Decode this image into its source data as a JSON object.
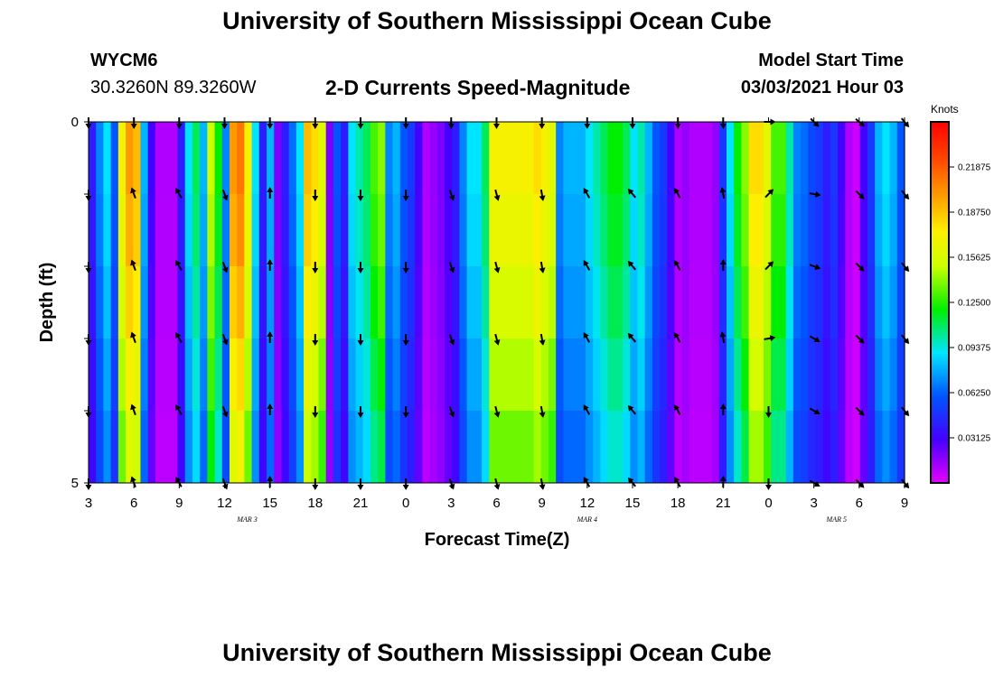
{
  "header": {
    "title": "University of Southern Mississippi Ocean Cube",
    "station_id": "WYCM6",
    "coordinates": "30.3260N 89.3260W",
    "subtitle": "2-D Currents Speed-Magnitude",
    "model_start_label": "Model Start Time",
    "model_start_value": "03/03/2021 Hour 03",
    "footer_title": "University of Southern Mississippi Ocean Cube"
  },
  "chart_data": {
    "type": "heatmap",
    "title": "2-D Currents Speed-Magnitude",
    "xlabel": "Forecast Time(Z)",
    "ylabel": "Depth (ft)",
    "x_ticks": [
      "3",
      "6",
      "9",
      "12",
      "15",
      "18",
      "21",
      "0",
      "3",
      "6",
      "9",
      "12",
      "15",
      "18",
      "21",
      "0",
      "3",
      "6",
      "9"
    ],
    "date_labels": [
      {
        "text": "MAR 3",
        "tick_index": 3.5
      },
      {
        "text": "MAR 4",
        "tick_index": 11
      },
      {
        "text": "MAR 5",
        "tick_index": 16.5
      }
    ],
    "y_ticks": [
      "0",
      "5"
    ],
    "ylim": [
      0,
      5
    ],
    "time_step_hours": 1,
    "depth_levels_ft": [
      0,
      1,
      2,
      3,
      4,
      5
    ],
    "colorbar": {
      "unit": "Knots",
      "min": 0,
      "max": 0.25,
      "tick_labels": [
        "0.21875",
        "0.18750",
        "0.15625",
        "0.12500",
        "0.09375",
        "0.06250",
        "0.03125"
      ],
      "tick_values": [
        0.21875,
        0.1875,
        0.15625,
        0.125,
        0.09375,
        0.0625,
        0.03125
      ]
    },
    "surface_speed_knots": [
      0.04,
      0.07,
      0.09,
      0.06,
      0.17,
      0.2,
      0.19,
      0.08,
      0.03,
      0.01,
      0.01,
      0.01,
      0.04,
      0.09,
      0.11,
      0.08,
      0.15,
      0.12,
      0.07,
      0.2,
      0.21,
      0.17,
      0.09,
      0.04,
      0.08,
      0.02,
      0.04,
      0.065,
      0.09,
      0.19,
      0.18,
      0.16,
      0.02,
      0.06,
      0.04,
      0.09,
      0.1,
      0.11,
      0.13,
      0.14,
      0.07,
      0.08,
      0.06,
      0.05,
      0.03,
      0.01,
      0.015,
      0.02,
      0.03,
      0.04,
      0.07,
      0.09,
      0.09,
      0.11,
      0.17,
      0.17,
      0.17,
      0.17,
      0.17,
      0.17,
      0.18,
      0.17,
      0.16,
      0.07,
      0.08,
      0.08,
      0.08,
      0.09,
      0.1,
      0.11,
      0.12,
      0.12,
      0.11,
      0.09,
      0.1,
      0.08,
      0.06,
      0.05,
      0.03,
      0.01,
      0.015,
      0.01,
      0.01,
      0.01,
      0.015,
      0.05,
      0.09,
      0.12,
      0.14,
      0.18,
      0.18,
      0.16,
      0.13,
      0.13,
      0.1,
      0.07,
      0.065,
      0.055,
      0.05,
      0.04,
      0.05,
      0.03,
      0.01,
      0.005,
      0.03,
      0.05,
      0.08,
      0.09,
      0.08,
      0.06
    ],
    "depth_factor": [
      1.0,
      0.97,
      0.92,
      0.86,
      0.8
    ],
    "arrow_hours": [
      0,
      3,
      6,
      9,
      12,
      15,
      18,
      21,
      24,
      27,
      30,
      33,
      36,
      39,
      42,
      45,
      48,
      51,
      54
    ],
    "arrow_depths_ft": [
      0,
      1,
      2,
      3,
      4,
      5
    ],
    "arrow_directions_deg": [
      [
        180,
        180,
        180,
        180,
        180,
        180
      ],
      [
        180,
        340,
        340,
        340,
        340,
        340
      ],
      [
        180,
        330,
        330,
        330,
        330,
        330
      ],
      [
        180,
        160,
        160,
        160,
        160,
        160
      ],
      [
        180,
        0,
        0,
        0,
        0,
        0
      ],
      [
        180,
        180,
        180,
        180,
        180,
        180
      ],
      [
        180,
        180,
        180,
        180,
        180,
        180
      ],
      [
        180,
        180,
        180,
        180,
        180,
        180
      ],
      [
        180,
        160,
        160,
        160,
        160,
        160
      ],
      [
        180,
        165,
        165,
        165,
        165,
        165
      ],
      [
        180,
        170,
        170,
        170,
        170,
        170
      ],
      [
        180,
        330,
        330,
        330,
        330,
        330
      ],
      [
        180,
        320,
        320,
        320,
        320,
        320
      ],
      [
        180,
        330,
        330,
        330,
        330,
        330
      ],
      [
        180,
        350,
        0,
        350,
        0,
        0
      ],
      [
        90,
        45,
        45,
        80,
        180,
        180
      ],
      [
        135,
        100,
        110,
        120,
        120,
        120
      ],
      [
        130,
        135,
        135,
        135,
        135,
        135
      ],
      [
        140,
        140,
        140,
        140,
        140,
        140
      ]
    ]
  }
}
